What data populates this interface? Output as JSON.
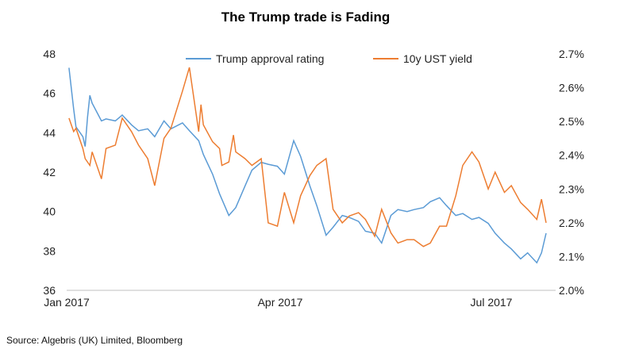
{
  "chart_data": {
    "type": "line",
    "title": "The Trump trade is Fading",
    "x_ticks": [
      "Jan 2017",
      "Apr 2017",
      "Jul 2017"
    ],
    "y_left": {
      "ylim": [
        36,
        48
      ],
      "ticks": [
        "36",
        "38",
        "40",
        "42",
        "44",
        "46",
        "48"
      ]
    },
    "y_right": {
      "ylim": [
        2.0,
        2.7
      ],
      "ticks": [
        "2.0%",
        "2.1%",
        "2.2%",
        "2.3%",
        "2.4%",
        "2.5%",
        "2.6%",
        "2.7%"
      ]
    },
    "legend": {
      "placement": "top"
    },
    "series": [
      {
        "name": "Trump approval rating",
        "axis": "left",
        "color": "#5b9bd5",
        "x": [
          "2017-01-03",
          "2017-01-05",
          "2017-01-06",
          "2017-01-09",
          "2017-01-10",
          "2017-01-11",
          "2017-01-12",
          "2017-01-13",
          "2017-01-17",
          "2017-01-19",
          "2017-01-23",
          "2017-01-26",
          "2017-01-30",
          "2017-02-02",
          "2017-02-06",
          "2017-02-09",
          "2017-02-13",
          "2017-02-16",
          "2017-02-21",
          "2017-02-24",
          "2017-02-28",
          "2017-03-02",
          "2017-03-06",
          "2017-03-09",
          "2017-03-13",
          "2017-03-16",
          "2017-03-20",
          "2017-03-23",
          "2017-03-27",
          "2017-03-30",
          "2017-04-03",
          "2017-04-06",
          "2017-04-10",
          "2017-04-13",
          "2017-04-17",
          "2017-04-20",
          "2017-04-24",
          "2017-04-27",
          "2017-05-01",
          "2017-05-04",
          "2017-05-08",
          "2017-05-11",
          "2017-05-15",
          "2017-05-18",
          "2017-05-22",
          "2017-05-25",
          "2017-05-29",
          "2017-06-01",
          "2017-06-05",
          "2017-06-08",
          "2017-06-12",
          "2017-06-15",
          "2017-06-19",
          "2017-06-22",
          "2017-06-26",
          "2017-06-29",
          "2017-07-03",
          "2017-07-06",
          "2017-07-10",
          "2017-07-13",
          "2017-07-17",
          "2017-07-20",
          "2017-07-24",
          "2017-07-26",
          "2017-07-28"
        ],
        "values": [
          47.3,
          45.2,
          44.3,
          43.8,
          43.3,
          44.8,
          45.9,
          45.5,
          44.6,
          44.7,
          44.6,
          44.9,
          44.4,
          44.1,
          44.2,
          43.8,
          44.6,
          44.2,
          44.5,
          44.1,
          43.6,
          42.9,
          41.9,
          40.9,
          39.8,
          40.2,
          41.3,
          42.1,
          42.5,
          42.4,
          42.3,
          41.9,
          43.6,
          42.8,
          41.3,
          40.3,
          38.8,
          39.2,
          39.8,
          39.7,
          39.5,
          39.0,
          38.9,
          38.4,
          39.8,
          40.1,
          40.0,
          40.1,
          40.2,
          40.5,
          40.7,
          40.3,
          39.8,
          39.9,
          39.6,
          39.7,
          39.4,
          38.9,
          38.4,
          38.1,
          37.6,
          37.9,
          37.4,
          37.9,
          38.9
        ]
      },
      {
        "name": "10y UST yield",
        "axis": "right",
        "color": "#ed7d31",
        "x": [
          "2017-01-03",
          "2017-01-05",
          "2017-01-06",
          "2017-01-09",
          "2017-01-10",
          "2017-01-12",
          "2017-01-13",
          "2017-01-17",
          "2017-01-19",
          "2017-01-23",
          "2017-01-26",
          "2017-01-30",
          "2017-02-02",
          "2017-02-06",
          "2017-02-09",
          "2017-02-13",
          "2017-02-16",
          "2017-02-21",
          "2017-02-24",
          "2017-02-28",
          "2017-03-01",
          "2017-03-02",
          "2017-03-06",
          "2017-03-09",
          "2017-03-10",
          "2017-03-13",
          "2017-03-15",
          "2017-03-16",
          "2017-03-20",
          "2017-03-23",
          "2017-03-27",
          "2017-03-30",
          "2017-04-03",
          "2017-04-06",
          "2017-04-10",
          "2017-04-13",
          "2017-04-17",
          "2017-04-20",
          "2017-04-24",
          "2017-04-27",
          "2017-05-01",
          "2017-05-04",
          "2017-05-08",
          "2017-05-11",
          "2017-05-15",
          "2017-05-18",
          "2017-05-22",
          "2017-05-25",
          "2017-05-29",
          "2017-06-01",
          "2017-06-05",
          "2017-06-08",
          "2017-06-12",
          "2017-06-15",
          "2017-06-19",
          "2017-06-22",
          "2017-06-26",
          "2017-06-29",
          "2017-07-03",
          "2017-07-06",
          "2017-07-10",
          "2017-07-13",
          "2017-07-17",
          "2017-07-20",
          "2017-07-24",
          "2017-07-26",
          "2017-07-28"
        ],
        "values": [
          2.51,
          2.47,
          2.48,
          2.42,
          2.39,
          2.37,
          2.41,
          2.33,
          2.42,
          2.43,
          2.51,
          2.47,
          2.43,
          2.39,
          2.31,
          2.45,
          2.48,
          2.59,
          2.66,
          2.47,
          2.55,
          2.49,
          2.44,
          2.42,
          2.37,
          2.38,
          2.46,
          2.41,
          2.39,
          2.37,
          2.39,
          2.2,
          2.19,
          2.29,
          2.2,
          2.28,
          2.34,
          2.37,
          2.39,
          2.24,
          2.2,
          2.22,
          2.23,
          2.21,
          2.16,
          2.24,
          2.17,
          2.14,
          2.15,
          2.15,
          2.13,
          2.14,
          2.19,
          2.19,
          2.28,
          2.37,
          2.41,
          2.38,
          2.3,
          2.35,
          2.29,
          2.31,
          2.26,
          2.24,
          2.21,
          2.27,
          2.2
        ]
      }
    ]
  },
  "footer": {
    "source": "Source: Algebris (UK) Limited, Bloomberg"
  }
}
